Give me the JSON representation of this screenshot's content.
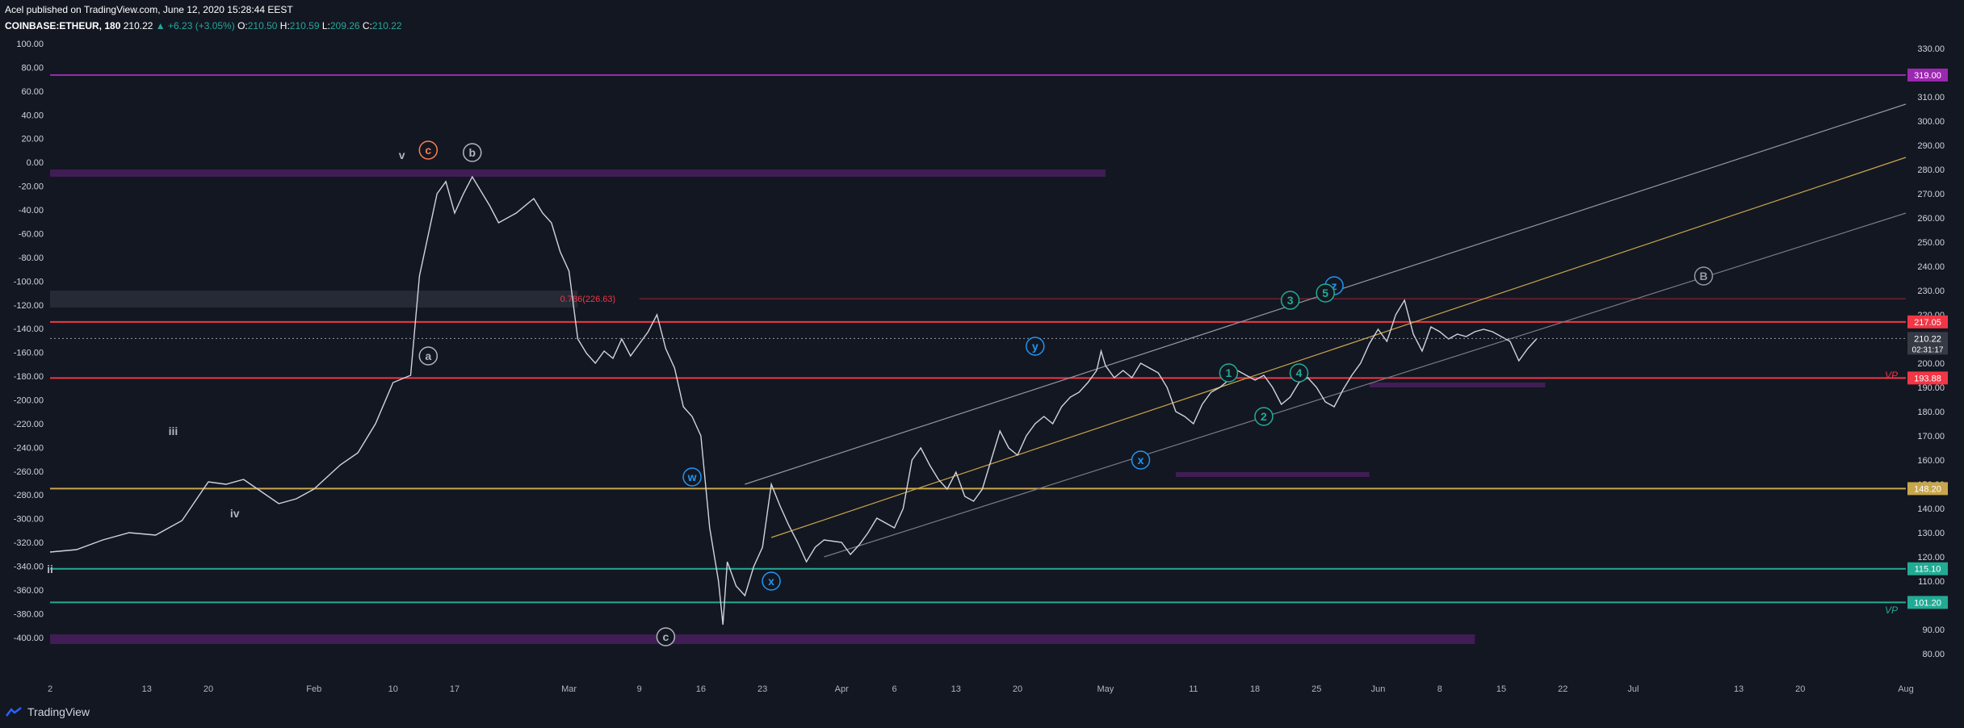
{
  "header": {
    "published": "Acel published on TradingView.com, June 12, 2020 15:28:44 EEST",
    "symbol": "COINBASE:ETHEUR, 180",
    "price": "210.22",
    "change": "+6.23 (+3.05%)",
    "open_label": "O:",
    "open": "210.50",
    "high_label": "H:",
    "high": "210.59",
    "low_label": "L:",
    "low": "209.26",
    "close_label": "C:",
    "close": "210.22"
  },
  "footer": {
    "brand": "TradingView"
  },
  "colors": {
    "background": "#131722",
    "red": "#f23645",
    "green": "#22ab94",
    "purple": "#4a1f5e",
    "gold": "#c8a64b",
    "blue": "#2196f3",
    "grey": "#b2b5be"
  },
  "chart_data": {
    "type": "candlestick",
    "title": "COINBASE:ETHEUR, 180",
    "right_axis": {
      "ylim": [
        75,
        335
      ],
      "ticks": [
        80,
        90,
        100,
        110,
        120,
        130,
        140,
        150,
        160,
        170,
        180,
        190,
        200,
        210,
        220,
        230,
        240,
        250,
        260,
        270,
        280,
        290,
        300,
        310,
        320,
        330
      ],
      "tick_labels": [
        "80.00",
        "90.00",
        "100.00",
        "110.00",
        "120.00",
        "130.00",
        "140.00",
        "150.00",
        "160.00",
        "170.00",
        "180.00",
        "190.00",
        "200.00",
        "210.00",
        "220.00",
        "230.00",
        "240.00",
        "250.00",
        "260.00",
        "270.00",
        "280.00",
        "290.00",
        "300.00",
        "310.00",
        "320.00",
        "330.00"
      ]
    },
    "left_axis": {
      "ticks": [
        100,
        80,
        60,
        40,
        20,
        0,
        -20,
        -40,
        -60,
        -80,
        -100,
        -120,
        -140,
        -160,
        -180,
        -200,
        -220,
        -240,
        -260,
        -280,
        -300,
        -320,
        -340,
        -360,
        -380,
        -400
      ],
      "tick_labels": [
        "100.00",
        "80.00",
        "60.00",
        "40.00",
        "20.00",
        "0.00",
        "-20.00",
        "-40.00",
        "-60.00",
        "-80.00",
        "-100.00",
        "-120.00",
        "-140.00",
        "-160.00",
        "-180.00",
        "-200.00",
        "-220.00",
        "-240.00",
        "-260.00",
        "-280.00",
        "-300.00",
        "-320.00",
        "-340.00",
        "-360.00",
        "-380.00",
        "-400.00"
      ]
    },
    "x_axis": {
      "labels": [
        "2",
        "13",
        "20",
        "Feb",
        "10",
        "17",
        "Mar",
        "9",
        "16",
        "23",
        "Apr",
        "6",
        "13",
        "20",
        "May",
        "11",
        "18",
        "25",
        "Jun",
        "8",
        "15",
        "22",
        "Jul",
        "13",
        "20",
        "Aug"
      ],
      "day_index": [
        0,
        11,
        18,
        30,
        39,
        46,
        59,
        67,
        74,
        81,
        90,
        96,
        103,
        110,
        120,
        130,
        137,
        144,
        151,
        158,
        165,
        172,
        180,
        192,
        199,
        211
      ],
      "range": [
        0,
        211
      ]
    },
    "price_path": [
      [
        0,
        122
      ],
      [
        3,
        123
      ],
      [
        6,
        127
      ],
      [
        9,
        130
      ],
      [
        12,
        129
      ],
      [
        15,
        135
      ],
      [
        18,
        151
      ],
      [
        20,
        150
      ],
      [
        22,
        152
      ],
      [
        24,
        147
      ],
      [
        26,
        142
      ],
      [
        28,
        144
      ],
      [
        30,
        148
      ],
      [
        33,
        158
      ],
      [
        35,
        163
      ],
      [
        37,
        175
      ],
      [
        39,
        192
      ],
      [
        41,
        195
      ],
      [
        42,
        236
      ],
      [
        44,
        270
      ],
      [
        45,
        275
      ],
      [
        46,
        262
      ],
      [
        47,
        270
      ],
      [
        48,
        277
      ],
      [
        50,
        265
      ],
      [
        51,
        258
      ],
      [
        53,
        262
      ],
      [
        55,
        268
      ],
      [
        56,
        262
      ],
      [
        57,
        258
      ],
      [
        58,
        246
      ],
      [
        59,
        238
      ],
      [
        60,
        210
      ],
      [
        61,
        204
      ],
      [
        62,
        200
      ],
      [
        63,
        205
      ],
      [
        64,
        202
      ],
      [
        65,
        210
      ],
      [
        66,
        203
      ],
      [
        67,
        208
      ],
      [
        68,
        213
      ],
      [
        69,
        220
      ],
      [
        70,
        206
      ],
      [
        71,
        198
      ],
      [
        72,
        182
      ],
      [
        73,
        178
      ],
      [
        74,
        170
      ],
      [
        75,
        132
      ],
      [
        76,
        110
      ],
      [
        76.5,
        92
      ],
      [
        77,
        118
      ],
      [
        78,
        108
      ],
      [
        79,
        104
      ],
      [
        80,
        116
      ],
      [
        81,
        124
      ],
      [
        82,
        150
      ],
      [
        83,
        141
      ],
      [
        84,
        133
      ],
      [
        85,
        126
      ],
      [
        86,
        118
      ],
      [
        87,
        124
      ],
      [
        88,
        127
      ],
      [
        90,
        126
      ],
      [
        91,
        121
      ],
      [
        92,
        125
      ],
      [
        93,
        130
      ],
      [
        94,
        136
      ],
      [
        96,
        132
      ],
      [
        97,
        140
      ],
      [
        98,
        160
      ],
      [
        99,
        165
      ],
      [
        100,
        158
      ],
      [
        101,
        152
      ],
      [
        102,
        148
      ],
      [
        103,
        155
      ],
      [
        104,
        145
      ],
      [
        105,
        143
      ],
      [
        106,
        148
      ],
      [
        107,
        160
      ],
      [
        108,
        172
      ],
      [
        109,
        165
      ],
      [
        110,
        162
      ],
      [
        111,
        170
      ],
      [
        112,
        175
      ],
      [
        113,
        178
      ],
      [
        114,
        175
      ],
      [
        115,
        182
      ],
      [
        116,
        186
      ],
      [
        117,
        188
      ],
      [
        118,
        192
      ],
      [
        119,
        197
      ],
      [
        119.5,
        205
      ],
      [
        120,
        199
      ],
      [
        121,
        194
      ],
      [
        122,
        197
      ],
      [
        123,
        194
      ],
      [
        124,
        200
      ],
      [
        125,
        198
      ],
      [
        126,
        196
      ],
      [
        127,
        190
      ],
      [
        128,
        180
      ],
      [
        129,
        178
      ],
      [
        130,
        175
      ],
      [
        131,
        183
      ],
      [
        132,
        188
      ],
      [
        133,
        190
      ],
      [
        134,
        193
      ],
      [
        135,
        197
      ],
      [
        136,
        195
      ],
      [
        137,
        193
      ],
      [
        138,
        195
      ],
      [
        139,
        190
      ],
      [
        140,
        183
      ],
      [
        141,
        186
      ],
      [
        142,
        192
      ],
      [
        143,
        194
      ],
      [
        144,
        190
      ],
      [
        145,
        184
      ],
      [
        146,
        182
      ],
      [
        147,
        189
      ],
      [
        148,
        195
      ],
      [
        149,
        200
      ],
      [
        150,
        208
      ],
      [
        151,
        214
      ],
      [
        152,
        209
      ],
      [
        153,
        220
      ],
      [
        154,
        226
      ],
      [
        155,
        212
      ],
      [
        156,
        205
      ],
      [
        157,
        215
      ],
      [
        158,
        213
      ],
      [
        159,
        210
      ],
      [
        160,
        212
      ],
      [
        161,
        211
      ],
      [
        162,
        213
      ],
      [
        163,
        214
      ],
      [
        164,
        213
      ],
      [
        165,
        211
      ],
      [
        166,
        209
      ],
      [
        167,
        201
      ],
      [
        168,
        206
      ],
      [
        169,
        210
      ]
    ],
    "last_price": 210.22,
    "countdown": "02:31:17",
    "price_badges": [
      {
        "value": 319.0,
        "text": "319.00",
        "color": "#9c27b0"
      },
      {
        "value": 217.05,
        "text": "217.05",
        "color": "#f23645"
      },
      {
        "value": 193.88,
        "text": "193.88",
        "color": "#f23645"
      },
      {
        "value": 148.2,
        "text": "148.20",
        "color": "#c8a64b"
      },
      {
        "value": 115.1,
        "text": "115.10",
        "color": "#22ab94"
      },
      {
        "value": 101.2,
        "text": "101.20",
        "color": "#22ab94"
      }
    ],
    "horizontal_lines": [
      {
        "value": 319.0,
        "color": "#9c27b0"
      },
      {
        "value": 217.05,
        "color": "#f23645"
      },
      {
        "value": 193.88,
        "color": "#f23645"
      },
      {
        "value": 148.2,
        "color": "#c8a64b"
      },
      {
        "value": 115.1,
        "color": "#22ab94"
      },
      {
        "value": 101.2,
        "color": "#22ab94"
      }
    ],
    "zones": [
      {
        "x1": 0,
        "x2": 120,
        "y1": 277,
        "y2": 280,
        "color": "#4a1f5e"
      },
      {
        "x1": 0,
        "x2": 60,
        "y1": 223,
        "y2": 230,
        "color": "#2a2e39"
      },
      {
        "x1": 0,
        "x2": 162,
        "y1": 84,
        "y2": 88,
        "color": "#4a1f5e"
      },
      {
        "x1": 128,
        "x2": 150,
        "y1": 153,
        "y2": 155,
        "color": "#4a1f5e"
      },
      {
        "x1": 150,
        "x2": 170,
        "y1": 190,
        "y2": 192,
        "color": "#4a1f5e"
      }
    ],
    "fib_label": "0.786(226.63)",
    "fib_level": 226.63,
    "channel_lines": [
      {
        "from": [
          79,
          150
        ],
        "to": [
          211,
          307
        ],
        "color": "#9598a1"
      },
      {
        "from": [
          82,
          128
        ],
        "to": [
          211,
          285
        ],
        "color": "#c8a64b"
      },
      {
        "from": [
          88,
          120
        ],
        "to": [
          211,
          262
        ],
        "color": "#787b86"
      }
    ],
    "wave_labels": [
      {
        "text": "c",
        "x": 43,
        "y": 288,
        "color": "#ff7f50",
        "circle": true
      },
      {
        "text": "b",
        "x": 48,
        "y": 287,
        "color": "#b2b5be",
        "circle": true
      },
      {
        "text": "v",
        "x": 40,
        "y": 286,
        "color": "#b2b5be",
        "circle": false
      },
      {
        "text": "a",
        "x": 43,
        "y": 203,
        "color": "#b2b5be",
        "circle": true
      },
      {
        "text": "iii",
        "x": 14,
        "y": 172,
        "color": "#b2b5be",
        "circle": false
      },
      {
        "text": "iv",
        "x": 21,
        "y": 138,
        "color": "#b2b5be",
        "circle": false
      },
      {
        "text": "ii",
        "x": 0,
        "y": 115,
        "color": "#b2b5be",
        "circle": false
      },
      {
        "text": "w",
        "x": 73,
        "y": 153,
        "color": "#2196f3",
        "circle": true
      },
      {
        "text": "c",
        "x": 70,
        "y": 87,
        "color": "#b2b5be",
        "circle": true
      },
      {
        "text": "x",
        "x": 82,
        "y": 110,
        "color": "#2196f3",
        "circle": true
      },
      {
        "text": "y",
        "x": 112,
        "y": 207,
        "color": "#2196f3",
        "circle": true
      },
      {
        "text": "x",
        "x": 124,
        "y": 160,
        "color": "#2196f3",
        "circle": true
      },
      {
        "text": "z",
        "x": 146,
        "y": 232,
        "color": "#2196f3",
        "circle": true
      },
      {
        "text": "B",
        "x": 188,
        "y": 236,
        "color": "#9598a1",
        "circle": true
      },
      {
        "text": "1",
        "x": 134,
        "y": 196,
        "color": "#22ab94",
        "circle": true
      },
      {
        "text": "2",
        "x": 138,
        "y": 178,
        "color": "#22ab94",
        "circle": true
      },
      {
        "text": "3",
        "x": 141,
        "y": 226,
        "color": "#22ab94",
        "circle": true
      },
      {
        "text": "4",
        "x": 142,
        "y": 196,
        "color": "#22ab94",
        "circle": true
      },
      {
        "text": "5",
        "x": 145,
        "y": 229,
        "color": "#22ab94",
        "circle": true
      }
    ],
    "vp_labels": [
      {
        "text": "VP",
        "value": 195,
        "color": "#f23645"
      },
      {
        "text": "VP",
        "value": 98,
        "color": "#22ab94"
      }
    ]
  }
}
